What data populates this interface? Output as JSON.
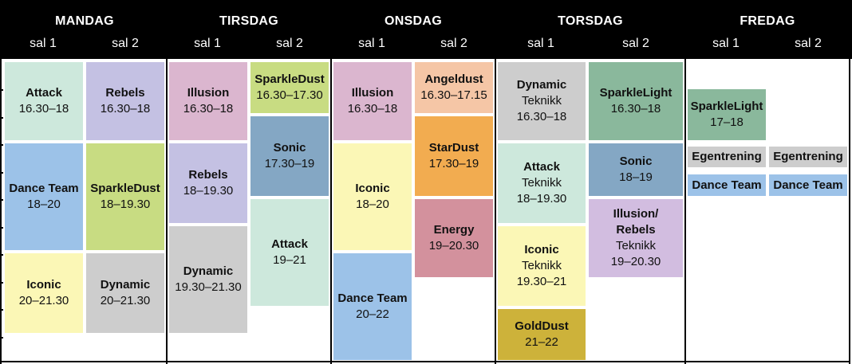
{
  "days": [
    {
      "title": "MANDAG",
      "halls": [
        "sal 1",
        "sal 2"
      ]
    },
    {
      "title": "TIRSDAG",
      "halls": [
        "sal 1",
        "sal 2"
      ]
    },
    {
      "title": "ONSDAG",
      "halls": [
        "sal 1",
        "sal 2"
      ]
    },
    {
      "title": "TORSDAG",
      "halls": [
        "sal 1",
        "sal 2"
      ]
    },
    {
      "title": "FREDAG",
      "halls": [
        "sal 1",
        "sal 2"
      ]
    }
  ],
  "colors": {
    "mint": "#cde8dc",
    "lavender": "#c4c1e3",
    "blue": "#9cc2e8",
    "lime": "#c8dc82",
    "yellow": "#fbf7b6",
    "gray": "#cdcdcd",
    "pink": "#dbb6cf",
    "steel": "#84a7c4",
    "peach": "#f5c6a6",
    "orange": "#f2ac50",
    "rose": "#d3919d",
    "green": "#8ab89c",
    "lilac": "#d2bde0",
    "gold": "#cdb23a"
  },
  "sessions": [
    {
      "day": 0,
      "hall": 0,
      "name": "Attack",
      "time": "16.30–18",
      "color": "mint"
    },
    {
      "day": 0,
      "hall": 0,
      "name": "Dance Team",
      "time": "18–20",
      "color": "blue"
    },
    {
      "day": 0,
      "hall": 0,
      "name": "Iconic",
      "time": "20–21.30",
      "color": "yellow"
    },
    {
      "day": 0,
      "hall": 1,
      "name": "Rebels",
      "time": "16.30–18",
      "color": "lavender"
    },
    {
      "day": 0,
      "hall": 1,
      "name": "SparkleDust",
      "time": "18–19.30",
      "color": "lime"
    },
    {
      "day": 0,
      "hall": 1,
      "name": "Dynamic",
      "time": "20–21.30",
      "color": "gray"
    },
    {
      "day": 1,
      "hall": 0,
      "name": "Illusion",
      "time": "16.30–18",
      "color": "pink"
    },
    {
      "day": 1,
      "hall": 0,
      "name": "Rebels",
      "time": "18–19.30",
      "color": "lavender"
    },
    {
      "day": 1,
      "hall": 0,
      "name": "Dynamic",
      "time": "19.30–21.30",
      "color": "gray"
    },
    {
      "day": 1,
      "hall": 1,
      "name": "SparkleDust",
      "time": "16.30–17.30",
      "color": "lime"
    },
    {
      "day": 1,
      "hall": 1,
      "name": "Sonic",
      "time": "17.30–19",
      "color": "steel"
    },
    {
      "day": 1,
      "hall": 1,
      "name": "Attack",
      "time": "19–21",
      "color": "mint"
    },
    {
      "day": 2,
      "hall": 0,
      "name": "Illusion",
      "time": "16.30–18",
      "color": "pink"
    },
    {
      "day": 2,
      "hall": 0,
      "name": "Iconic",
      "time": "18–20",
      "color": "yellow"
    },
    {
      "day": 2,
      "hall": 0,
      "name": "Dance Team",
      "time": "20–22",
      "color": "blue"
    },
    {
      "day": 2,
      "hall": 1,
      "name": "Angeldust",
      "time": "16.30–17.15",
      "color": "peach"
    },
    {
      "day": 2,
      "hall": 1,
      "name": "StarDust",
      "time": "17.30–19",
      "color": "orange"
    },
    {
      "day": 2,
      "hall": 1,
      "name": "Energy",
      "time": "19–20.30",
      "color": "rose"
    },
    {
      "day": 3,
      "hall": 0,
      "name": "Dynamic",
      "sub": "Teknikk",
      "time": "16.30–18",
      "color": "gray"
    },
    {
      "day": 3,
      "hall": 0,
      "name": "Attack",
      "sub": "Teknikk",
      "time": "18–19.30",
      "color": "mint"
    },
    {
      "day": 3,
      "hall": 0,
      "name": "Iconic",
      "sub": "Teknikk",
      "time": "19.30–21",
      "color": "yellow"
    },
    {
      "day": 3,
      "hall": 0,
      "name": "GoldDust",
      "time": "21–22",
      "color": "gold"
    },
    {
      "day": 3,
      "hall": 1,
      "name": "SparkleLight",
      "time": "16.30–18",
      "color": "green"
    },
    {
      "day": 3,
      "hall": 1,
      "name": "Sonic",
      "time": "18–19",
      "color": "steel"
    },
    {
      "day": 3,
      "hall": 1,
      "name": "Illusion/",
      "name2": "Rebels",
      "sub": "Teknikk",
      "time": "19–20.30",
      "color": "lilac"
    },
    {
      "day": 4,
      "hall": 0,
      "name": "SparkleLight",
      "time": "17–18",
      "color": "green"
    },
    {
      "day": 4,
      "hall": 0,
      "name": "Egentrening",
      "color": "gray"
    },
    {
      "day": 4,
      "hall": 0,
      "name": "Dance Team",
      "color": "blue"
    },
    {
      "day": 4,
      "hall": 1,
      "name": "Egentrening",
      "color": "gray"
    },
    {
      "day": 4,
      "hall": 1,
      "name": "Dance Team",
      "color": "blue"
    }
  ]
}
